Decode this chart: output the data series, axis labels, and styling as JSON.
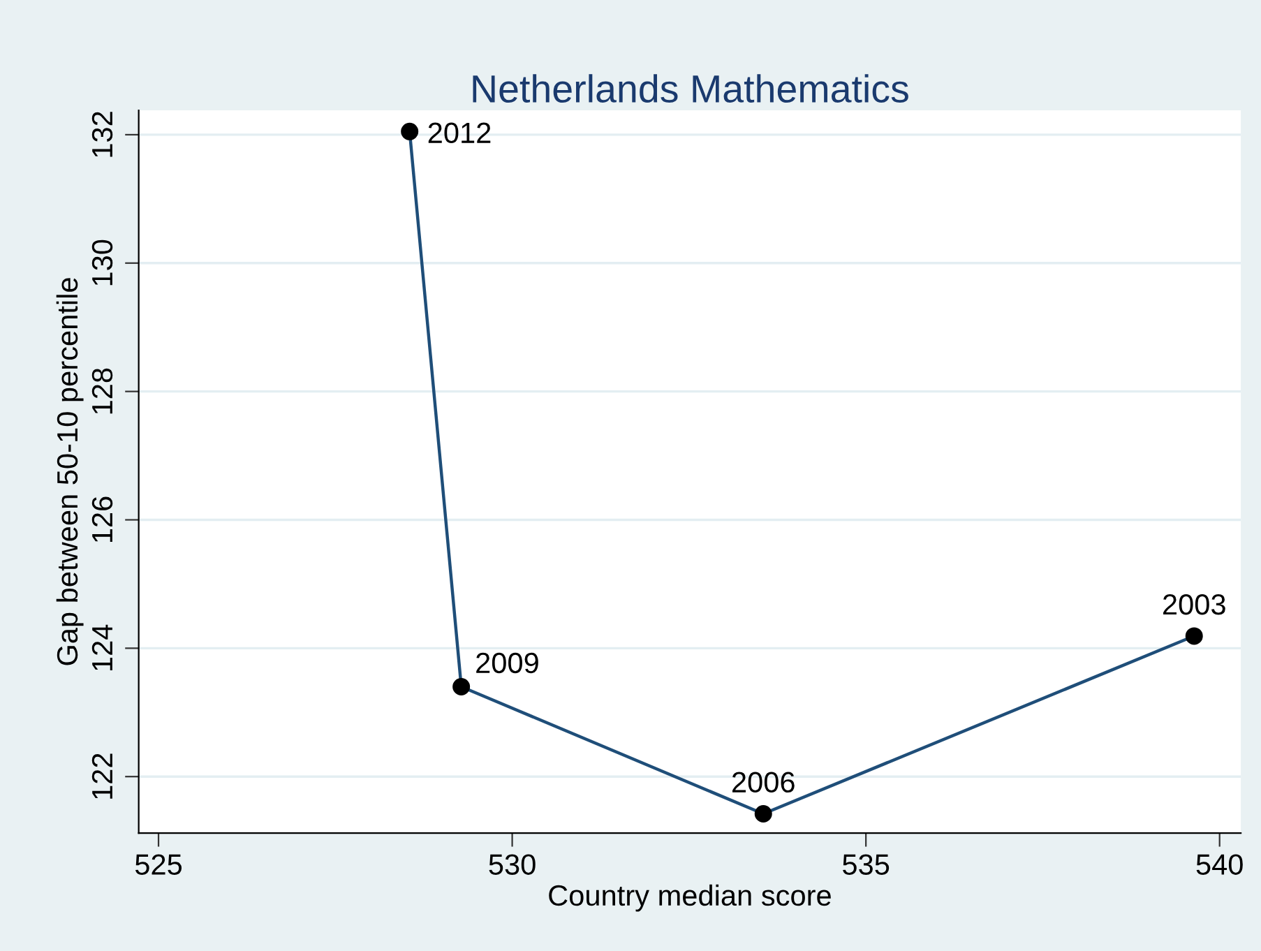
{
  "chart_data": {
    "type": "line",
    "title": "Netherlands Mathematics",
    "xlabel": "Country median score",
    "ylabel": "Gap between 50-10 percentile",
    "series": [
      {
        "color": "#1f4e79",
        "x": [
          528.55,
          529.28,
          533.55,
          539.64
        ],
        "values": [
          132.05,
          123.4,
          121.42,
          124.19
        ]
      }
    ],
    "annotations": [
      {
        "text": "2012",
        "x": 528.55,
        "y": 132.05
      },
      {
        "text": "2009",
        "x": 529.28,
        "y": 123.4
      },
      {
        "text": "2006",
        "x": 533.55,
        "y": 121.42
      },
      {
        "text": "2003",
        "x": 539.64,
        "y": 124.19
      }
    ],
    "xlim": [
      524.72,
      540.3
    ],
    "ylim": [
      121.12,
      132.38
    ],
    "xticks": [
      525,
      530,
      535,
      540
    ],
    "yticks": [
      122,
      124,
      126,
      128,
      130,
      132
    ],
    "grid": "y",
    "marker": "circle",
    "line_style": "solid"
  }
}
